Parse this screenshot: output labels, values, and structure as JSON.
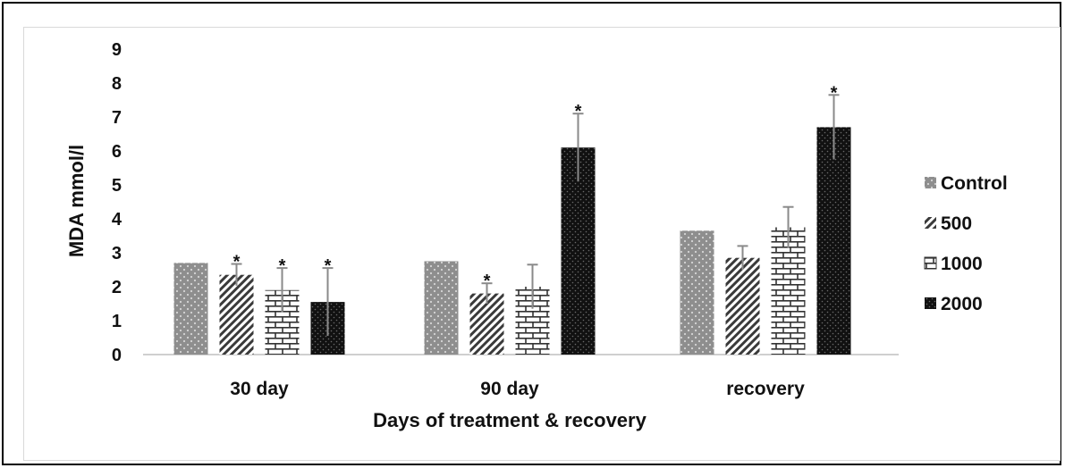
{
  "chart_data": {
    "type": "bar",
    "title": "",
    "xlabel": "Days of treatment & recovery",
    "ylabel": "MDA mmol/l",
    "ylim": [
      0,
      9
    ],
    "yticks": [
      "0",
      "1",
      "2",
      "3",
      "4",
      "5",
      "6",
      "7",
      "8",
      "9"
    ],
    "categories": [
      "30 day",
      "90 day",
      "recovery"
    ],
    "grid": false,
    "legend_position": "right",
    "series": [
      {
        "name": "Control",
        "values": [
          2.7,
          2.75,
          3.65
        ],
        "errors": [
          0,
          0,
          0
        ],
        "significant": [
          false,
          false,
          false
        ],
        "pattern": "dots",
        "color": "#8c8c8c"
      },
      {
        "name": "500",
        "values": [
          2.35,
          1.8,
          2.85
        ],
        "errors": [
          0.32,
          0.3,
          0.35
        ],
        "significant": [
          true,
          true,
          false
        ],
        "pattern": "diagonal",
        "color": "#4d4d4d"
      },
      {
        "name": "1000",
        "values": [
          1.9,
          2.0,
          3.75
        ],
        "errors": [
          0.65,
          0.65,
          0.6
        ],
        "significant": [
          true,
          false,
          false
        ],
        "pattern": "brick",
        "color": "#ffffff"
      },
      {
        "name": "2000",
        "values": [
          1.55,
          6.1,
          6.7
        ],
        "errors": [
          1.0,
          1.0,
          0.95
        ],
        "significant": [
          true,
          true,
          true
        ],
        "pattern": "dense",
        "color": "#111111"
      }
    ],
    "significance_marker": "*"
  }
}
